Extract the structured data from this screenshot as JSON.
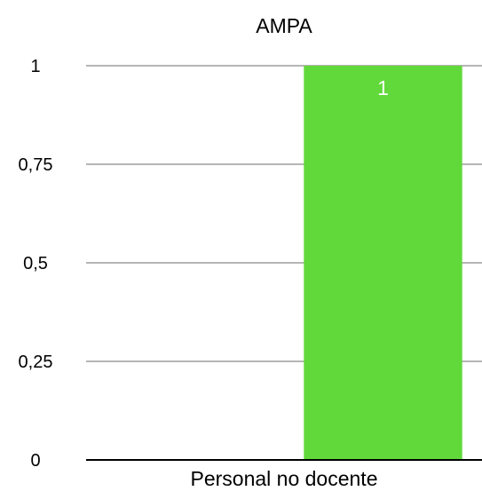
{
  "chart_data": {
    "type": "bar",
    "title": "AMPA",
    "xlabel": "",
    "ylabel": "",
    "categories": [
      "",
      "Personal no docente"
    ],
    "category_label": "Personal no docente",
    "values": [
      0,
      1
    ],
    "data_labels": [
      "",
      "1"
    ],
    "yticks": [
      {
        "value": 0,
        "label": "0"
      },
      {
        "value": 0.25,
        "label": "0,25"
      },
      {
        "value": 0.5,
        "label": "0,5"
      },
      {
        "value": 0.75,
        "label": "0,75"
      },
      {
        "value": 1,
        "label": "1"
      }
    ],
    "ylim": [
      0,
      1
    ],
    "grid": true,
    "legend": "none",
    "colors": {
      "bar": "#62D93A",
      "grid": "#B5B5B5",
      "axis": "#000000",
      "data_label": "#FFFFFF",
      "text": "#000000"
    }
  }
}
